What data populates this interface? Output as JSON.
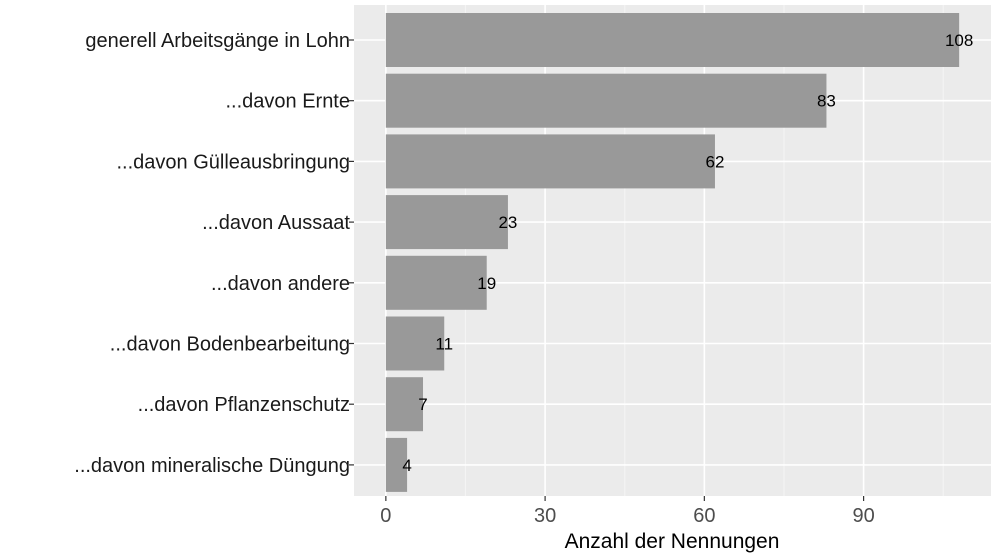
{
  "chart_data": {
    "type": "bar",
    "orientation": "horizontal",
    "categories": [
      "generell Arbeitsgänge in Lohn",
      "...davon Ernte",
      "...davon Gülleausbringung",
      "...davon Aussaat",
      "...davon andere",
      "...davon Bodenbearbeitung",
      "...davon Pflanzenschutz",
      "...davon mineralische Düngung"
    ],
    "values": [
      108,
      83,
      62,
      23,
      19,
      11,
      7,
      4
    ],
    "value_labels": [
      "108",
      "83",
      "62",
      "23",
      "19",
      "11",
      "7",
      "4"
    ],
    "xlabel": "Anzahl der Nennungen",
    "ylabel": "",
    "xlim": [
      -6,
      114
    ],
    "x_ticks": [
      0,
      30,
      60,
      90
    ],
    "x_tick_labels": [
      "0",
      "30",
      "60",
      "90"
    ],
    "grid": true,
    "legend": "none",
    "colors": {
      "bar": "#999999",
      "panel_background": "#ebebeb",
      "grid_major": "#ffffff",
      "grid_minor": "#f5f5f5"
    }
  }
}
